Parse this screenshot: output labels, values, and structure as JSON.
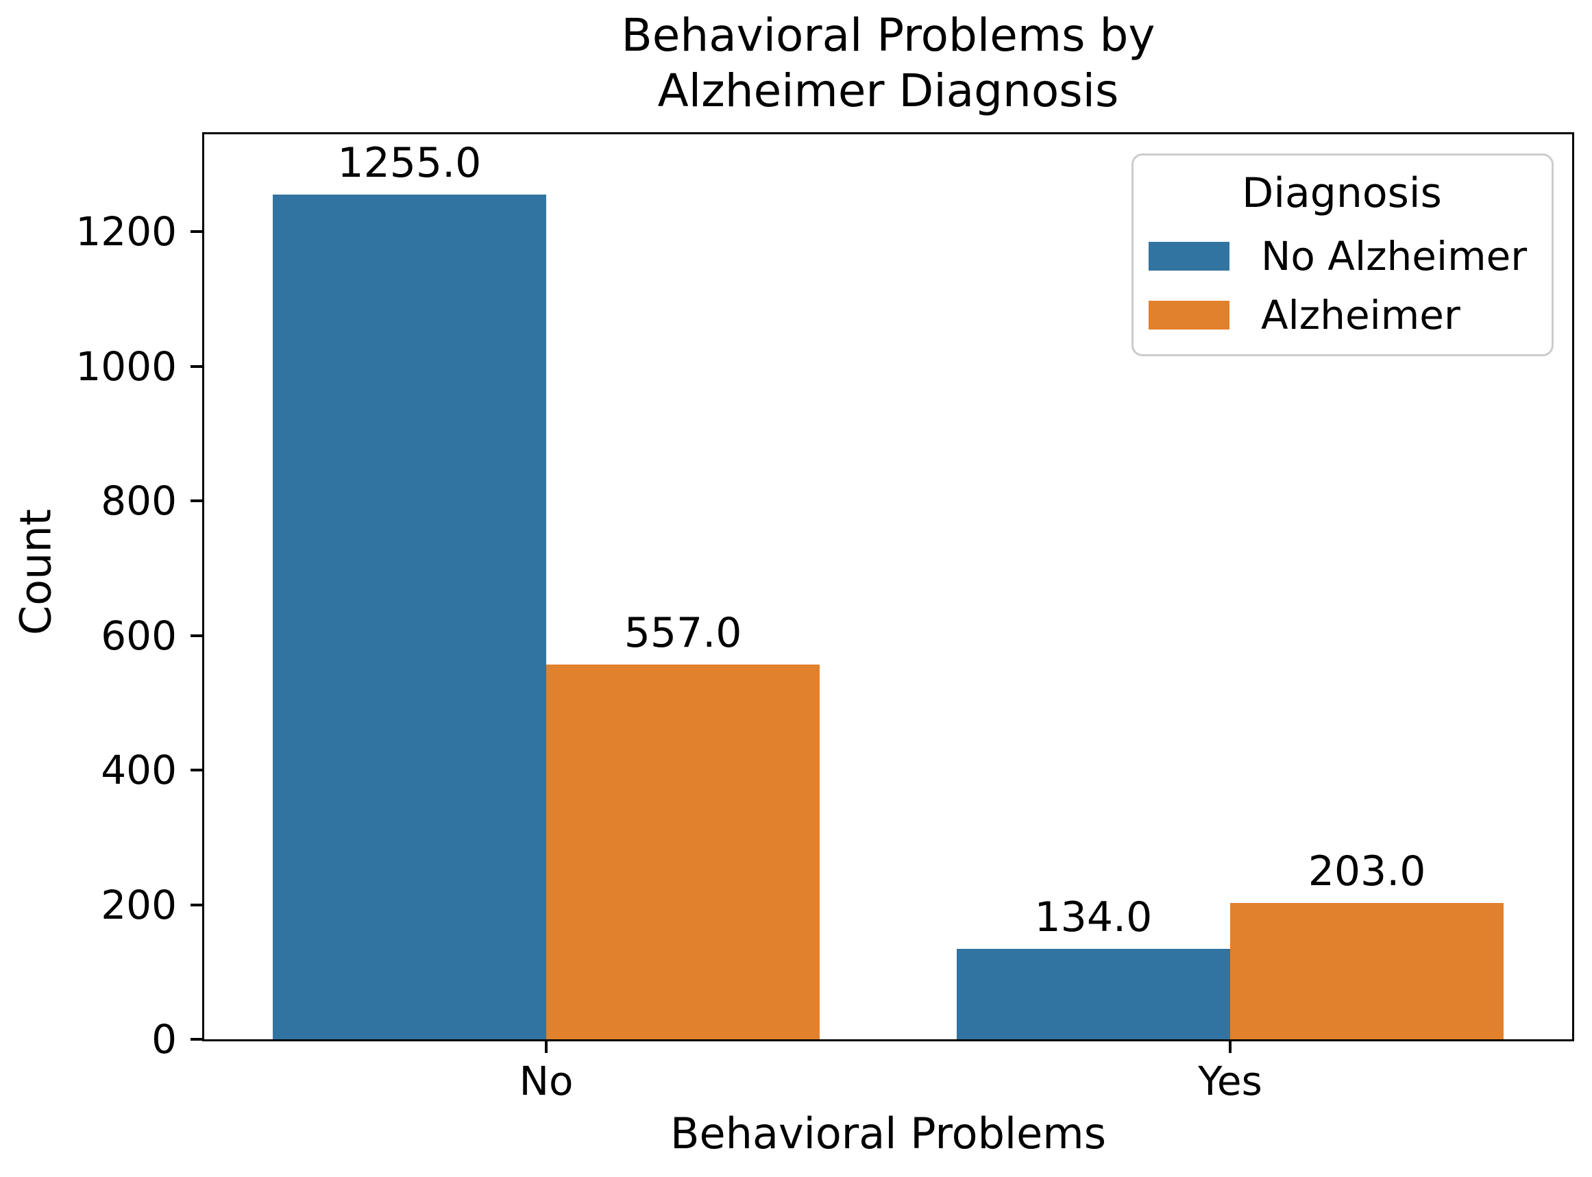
{
  "figure": {
    "title_lines": [
      "Behavioral Problems by",
      "Alzheimer Diagnosis"
    ]
  },
  "chart_data": {
    "type": "bar",
    "title": "Behavioral Problems by Alzheimer Diagnosis",
    "xlabel": "Behavioral Problems",
    "ylabel": "Count",
    "categories": [
      "No",
      "Yes"
    ],
    "series": [
      {
        "name": "No Alzheimer",
        "color": "#3274a1",
        "values": [
          1255.0,
          134.0
        ],
        "value_labels": [
          "1255.0",
          "134.0"
        ]
      },
      {
        "name": "Alzheimer",
        "color": "#e1812c",
        "values": [
          557.0,
          203.0
        ],
        "value_labels": [
          "557.0",
          "203.0"
        ]
      }
    ],
    "yticks": [
      0,
      200,
      400,
      600,
      800,
      1000,
      1200
    ],
    "ylim": [
      0,
      1345
    ],
    "grid": false,
    "legend": {
      "title": "Diagnosis",
      "position": "upper right"
    }
  }
}
